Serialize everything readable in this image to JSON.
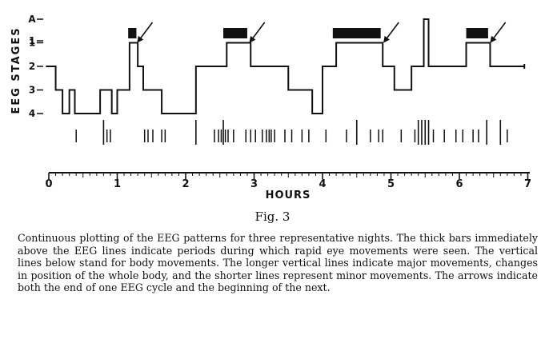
{
  "chart_data": {
    "type": "line",
    "ylabel": "EEG STAGES",
    "xlabel": "HOURS",
    "xlim": [
      0,
      7
    ],
    "x_ticks": [
      "0",
      "1",
      "2",
      "3",
      "4",
      "5",
      "6",
      "7"
    ],
    "y_levels": [
      "A",
      "1",
      "2",
      "3",
      "4"
    ],
    "y_ticks": [
      "A",
      "1",
      "1",
      "2",
      "3",
      "4"
    ],
    "series": [
      {
        "values": [
          [
            0.05,
            2
          ],
          [
            0.1,
            3
          ],
          [
            0.2,
            4
          ],
          [
            0.3,
            3
          ],
          [
            0.38,
            4
          ],
          [
            0.75,
            3
          ],
          [
            0.92,
            4
          ],
          [
            1.0,
            3
          ],
          [
            1.18,
            1
          ],
          [
            1.3,
            2
          ],
          [
            1.38,
            3
          ],
          [
            1.65,
            4
          ],
          [
            2.15,
            2
          ],
          [
            2.6,
            1
          ],
          [
            2.95,
            2
          ],
          [
            3.5,
            3
          ],
          [
            3.85,
            4
          ],
          [
            4.0,
            2
          ],
          [
            4.2,
            1
          ],
          [
            4.88,
            2
          ],
          [
            5.05,
            3
          ],
          [
            5.3,
            2
          ],
          [
            5.48,
            0
          ],
          [
            5.55,
            2
          ],
          [
            6.1,
            1
          ],
          [
            6.45,
            2
          ],
          [
            6.95,
            2
          ]
        ]
      }
    ],
    "rem_periods": [
      [
        1.16,
        1.28
      ],
      [
        2.55,
        2.9
      ],
      [
        4.15,
        4.85
      ],
      [
        6.1,
        6.42
      ]
    ],
    "arrows": [
      1.28,
      2.92,
      4.88,
      6.44
    ],
    "body_movements": {
      "major": [
        0.8,
        2.15,
        2.55,
        4.5,
        5.4,
        5.45,
        5.5,
        5.55,
        6.4,
        6.6
      ],
      "minor": [
        0.4,
        0.85,
        0.9,
        1.4,
        1.45,
        1.52,
        1.65,
        1.7,
        2.42,
        2.48,
        2.52,
        2.58,
        2.62,
        2.7,
        2.88,
        2.95,
        3.02,
        3.12,
        3.18,
        3.22,
        3.25,
        3.3,
        3.45,
        3.55,
        3.7,
        3.8,
        4.05,
        4.35,
        4.7,
        4.82,
        4.88,
        5.15,
        5.35,
        5.62,
        5.78,
        5.95,
        6.05,
        6.2,
        6.28,
        6.7
      ]
    }
  },
  "figure": {
    "label": "Fig. 3",
    "caption": "Continuous plotting of the EEG patterns for three representative nights. The thick bars immediately above the EEG lines indicate periods during which rapid eye movements were seen. The vertical lines below stand for body movements. The longer vertical lines indicate major movements, changes in position of the whole body, and the shorter lines represent minor movements. The arrows indicate both the end of one EEG cycle and the beginning of the next."
  }
}
